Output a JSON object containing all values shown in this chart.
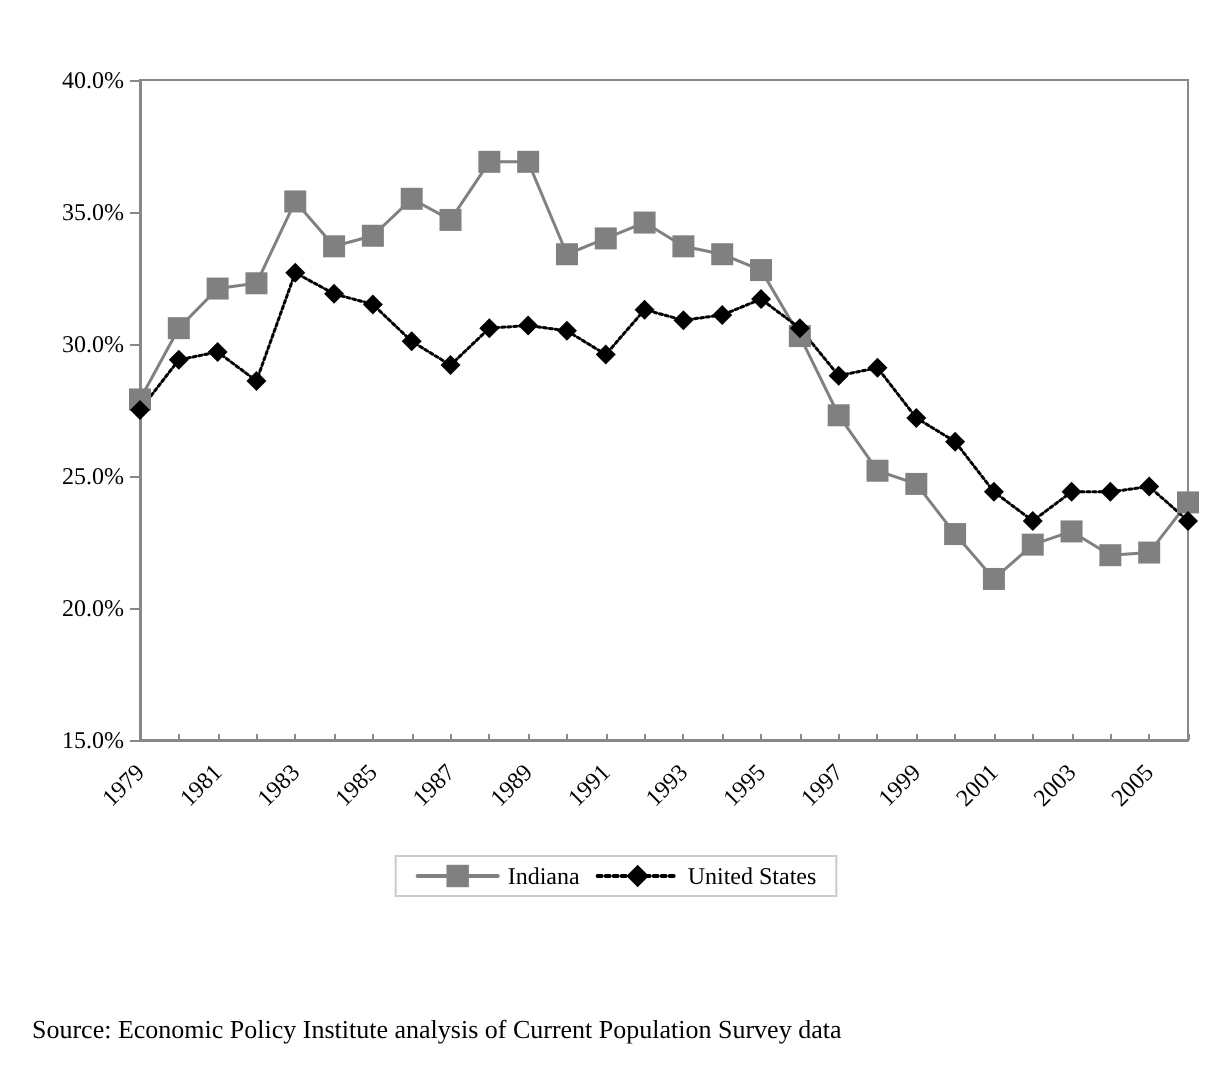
{
  "chart_data": {
    "type": "line",
    "categories": [
      "1979",
      null,
      "1981",
      null,
      "1983",
      null,
      "1985",
      null,
      "1987",
      null,
      "1989",
      null,
      "1991",
      null,
      "1993",
      null,
      "1995",
      null,
      "1997",
      null,
      "1999",
      null,
      "2001",
      null,
      "2003",
      null,
      "2005",
      null
    ],
    "series": [
      {
        "name": "Indiana",
        "color": "#808080",
        "marker": "square",
        "line_style": "solid",
        "values": [
          27.9,
          30.6,
          32.1,
          32.3,
          35.4,
          33.7,
          34.1,
          35.5,
          34.7,
          36.9,
          36.9,
          33.4,
          34.0,
          34.6,
          33.7,
          33.4,
          32.8,
          30.3,
          27.3,
          25.2,
          24.7,
          22.8,
          21.1,
          22.4,
          22.9,
          22.0,
          22.1,
          24.0
        ]
      },
      {
        "name": "United States",
        "color": "#000000",
        "marker": "diamond",
        "line_style": "dotted",
        "values": [
          27.5,
          29.4,
          29.7,
          28.6,
          32.7,
          31.9,
          31.5,
          30.1,
          29.2,
          30.6,
          30.7,
          30.5,
          29.6,
          31.3,
          30.9,
          31.1,
          31.7,
          30.6,
          28.8,
          29.1,
          27.2,
          26.3,
          24.4,
          23.3,
          24.4,
          24.4,
          24.6,
          23.3
        ]
      }
    ],
    "ylim": [
      15,
      40
    ],
    "yticks": [
      {
        "value": 15,
        "label": "15.0%"
      },
      {
        "value": 20,
        "label": "20.0%"
      },
      {
        "value": 25,
        "label": "25.0%"
      },
      {
        "value": 30,
        "label": "30.0%"
      },
      {
        "value": 35,
        "label": "35.0%"
      },
      {
        "value": 40,
        "label": "40.0%"
      }
    ],
    "grid": false,
    "legend": "bottom",
    "annotations": [
      "Source: Economic Policy Institute analysis of Current Population Survey data"
    ]
  }
}
